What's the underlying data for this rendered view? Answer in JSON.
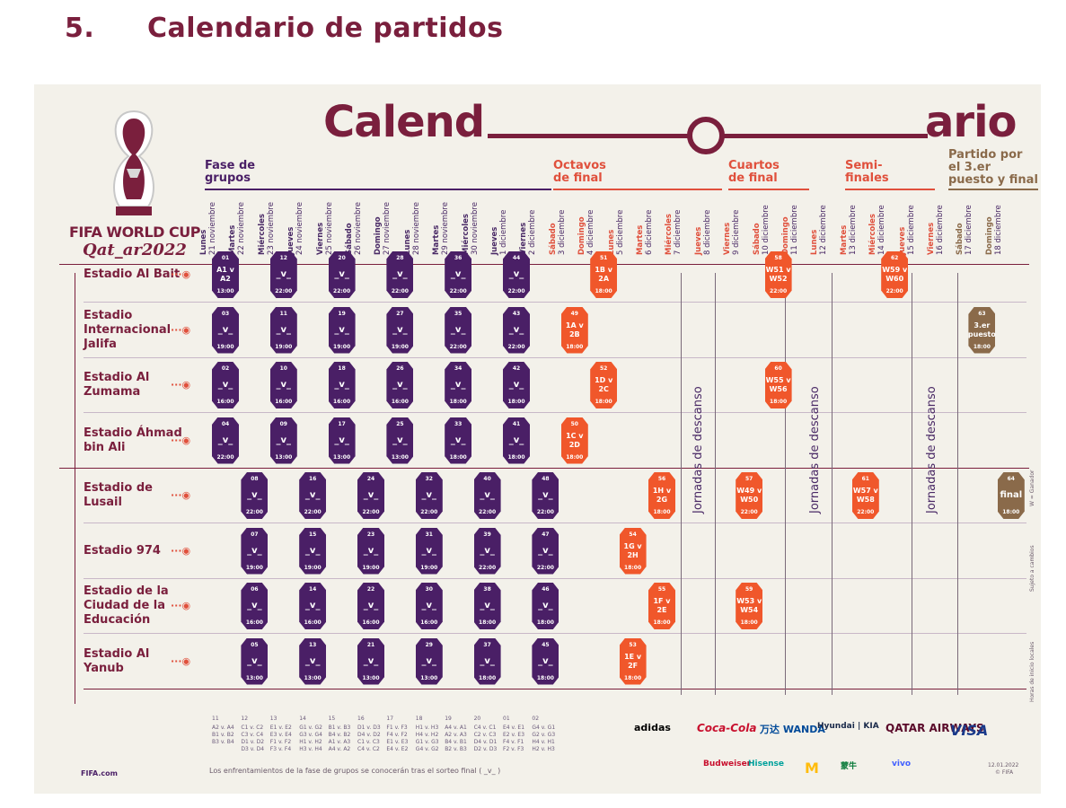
{
  "section_heading": {
    "number": "5.",
    "title": "Calendario de partidos"
  },
  "poster": {
    "title_left": "Calend",
    "title_right": "ario",
    "logo": {
      "line1": "FIFA WORLD CUP",
      "line2": "Qat_ar2022"
    },
    "phases": {
      "groups": "Fase de grupos",
      "round16": "Octavos de final",
      "quarters": "Cuartos de final",
      "semis": "Semi- finales",
      "final": "Partido por el 3.er puesto y final"
    },
    "days": [
      {
        "d": "Lunes",
        "date": "21 noviembre"
      },
      {
        "d": "Martes",
        "date": "22 noviembre"
      },
      {
        "d": "Miércoles",
        "date": "23 noviembre"
      },
      {
        "d": "Jueves",
        "date": "24 noviembre"
      },
      {
        "d": "Viernes",
        "date": "25 noviembre"
      },
      {
        "d": "Sábado",
        "date": "26 noviembre"
      },
      {
        "d": "Domingo",
        "date": "27 noviembre"
      },
      {
        "d": "Lunes",
        "date": "28 noviembre"
      },
      {
        "d": "Martes",
        "date": "29 noviembre"
      },
      {
        "d": "Miércoles",
        "date": "30 noviembre"
      },
      {
        "d": "Jueves",
        "date": "1 diciembre"
      },
      {
        "d": "Viernes",
        "date": "2 diciembre"
      },
      {
        "d": "Sábado",
        "date": "3 diciembre"
      },
      {
        "d": "Domingo",
        "date": "4 diciembre"
      },
      {
        "d": "Lunes",
        "date": "5 diciembre"
      },
      {
        "d": "Martes",
        "date": "6 diciembre"
      },
      {
        "d": "Miércoles",
        "date": "7 diciembre"
      },
      {
        "d": "Jueves",
        "date": "8 diciembre"
      },
      {
        "d": "Viernes",
        "date": "9 diciembre"
      },
      {
        "d": "Sábado",
        "date": "10 diciembre"
      },
      {
        "d": "Domingo",
        "date": "11 diciembre"
      },
      {
        "d": "Lunes",
        "date": "12 diciembre"
      },
      {
        "d": "Martes",
        "date": "13 diciembre"
      },
      {
        "d": "Miércoles",
        "date": "14 diciembre"
      },
      {
        "d": "Jueves",
        "date": "15 diciembre"
      },
      {
        "d": "Viernes",
        "date": "16 diciembre"
      },
      {
        "d": "Sábado",
        "date": "17 diciembre"
      },
      {
        "d": "Domingo",
        "date": "18 diciembre"
      }
    ],
    "stadiums": [
      "Estadio Al Bait",
      "Estadio Internacional Jalifa",
      "Estadio Al Zumama",
      "Estadio Áhmad bin Ali",
      "Estadio de Lusail",
      "Estadio 974",
      "Estadio de la Ciudad de la Educación",
      "Estadio Al Yanub"
    ],
    "rest_days": "Jornadas de descanso",
    "group_matches": [
      {
        "row": 0,
        "day": 0,
        "n": "01",
        "t": "A1 v A2",
        "time": "13:00"
      },
      {
        "row": 0,
        "day": 2,
        "n": "12",
        "t": "_v_",
        "time": "22:00"
      },
      {
        "row": 0,
        "day": 4,
        "n": "20",
        "t": "_v_",
        "time": "22:00"
      },
      {
        "row": 0,
        "day": 6,
        "n": "28",
        "t": "_v_",
        "time": "22:00"
      },
      {
        "row": 0,
        "day": 8,
        "n": "36",
        "t": "_v_",
        "time": "22:00"
      },
      {
        "row": 0,
        "day": 10,
        "n": "44",
        "t": "_v_",
        "time": "22:00"
      },
      {
        "row": 1,
        "day": 0,
        "n": "03",
        "t": "_v_",
        "time": "19:00"
      },
      {
        "row": 1,
        "day": 2,
        "n": "11",
        "t": "_v_",
        "time": "19:00"
      },
      {
        "row": 1,
        "day": 4,
        "n": "19",
        "t": "_v_",
        "time": "19:00"
      },
      {
        "row": 1,
        "day": 6,
        "n": "27",
        "t": "_v_",
        "time": "19:00"
      },
      {
        "row": 1,
        "day": 8,
        "n": "35",
        "t": "_v_",
        "time": "22:00"
      },
      {
        "row": 1,
        "day": 10,
        "n": "43",
        "t": "_v_",
        "time": "22:00"
      },
      {
        "row": 2,
        "day": 0,
        "n": "02",
        "t": "_v_",
        "time": "16:00"
      },
      {
        "row": 2,
        "day": 2,
        "n": "10",
        "t": "_v_",
        "time": "16:00"
      },
      {
        "row": 2,
        "day": 4,
        "n": "18",
        "t": "_v_",
        "time": "16:00"
      },
      {
        "row": 2,
        "day": 6,
        "n": "26",
        "t": "_v_",
        "time": "16:00"
      },
      {
        "row": 2,
        "day": 8,
        "n": "34",
        "t": "_v_",
        "time": "18:00"
      },
      {
        "row": 2,
        "day": 10,
        "n": "42",
        "t": "_v_",
        "time": "18:00"
      },
      {
        "row": 3,
        "day": 0,
        "n": "04",
        "t": "_v_",
        "time": "22:00"
      },
      {
        "row": 3,
        "day": 2,
        "n": "09",
        "t": "_v_",
        "time": "13:00"
      },
      {
        "row": 3,
        "day": 4,
        "n": "17",
        "t": "_v_",
        "time": "13:00"
      },
      {
        "row": 3,
        "day": 6,
        "n": "25",
        "t": "_v_",
        "time": "13:00"
      },
      {
        "row": 3,
        "day": 8,
        "n": "33",
        "t": "_v_",
        "time": "18:00"
      },
      {
        "row": 3,
        "day": 10,
        "n": "41",
        "t": "_v_",
        "time": "18:00"
      },
      {
        "row": 4,
        "day": 1,
        "n": "08",
        "t": "_v_",
        "time": "22:00"
      },
      {
        "row": 4,
        "day": 3,
        "n": "16",
        "t": "_v_",
        "time": "22:00"
      },
      {
        "row": 4,
        "day": 5,
        "n": "24",
        "t": "_v_",
        "time": "22:00"
      },
      {
        "row": 4,
        "day": 7,
        "n": "32",
        "t": "_v_",
        "time": "22:00"
      },
      {
        "row": 4,
        "day": 9,
        "n": "40",
        "t": "_v_",
        "time": "22:00"
      },
      {
        "row": 4,
        "day": 11,
        "n": "48",
        "t": "_v_",
        "time": "22:00"
      },
      {
        "row": 5,
        "day": 1,
        "n": "07",
        "t": "_v_",
        "time": "19:00"
      },
      {
        "row": 5,
        "day": 3,
        "n": "15",
        "t": "_v_",
        "time": "19:00"
      },
      {
        "row": 5,
        "day": 5,
        "n": "23",
        "t": "_v_",
        "time": "19:00"
      },
      {
        "row": 5,
        "day": 7,
        "n": "31",
        "t": "_v_",
        "time": "19:00"
      },
      {
        "row": 5,
        "day": 9,
        "n": "39",
        "t": "_v_",
        "time": "22:00"
      },
      {
        "row": 5,
        "day": 11,
        "n": "47",
        "t": "_v_",
        "time": "22:00"
      },
      {
        "row": 6,
        "day": 1,
        "n": "06",
        "t": "_v_",
        "time": "16:00"
      },
      {
        "row": 6,
        "day": 3,
        "n": "14",
        "t": "_v_",
        "time": "16:00"
      },
      {
        "row": 6,
        "day": 5,
        "n": "22",
        "t": "_v_",
        "time": "16:00"
      },
      {
        "row": 6,
        "day": 7,
        "n": "30",
        "t": "_v_",
        "time": "16:00"
      },
      {
        "row": 6,
        "day": 9,
        "n": "38",
        "t": "_v_",
        "time": "18:00"
      },
      {
        "row": 6,
        "day": 11,
        "n": "46",
        "t": "_v_",
        "time": "18:00"
      },
      {
        "row": 7,
        "day": 1,
        "n": "05",
        "t": "_v_",
        "time": "13:00"
      },
      {
        "row": 7,
        "day": 3,
        "n": "13",
        "t": "_v_",
        "time": "13:00"
      },
      {
        "row": 7,
        "day": 5,
        "n": "21",
        "t": "_v_",
        "time": "13:00"
      },
      {
        "row": 7,
        "day": 7,
        "n": "29",
        "t": "_v_",
        "time": "13:00"
      },
      {
        "row": 7,
        "day": 9,
        "n": "37",
        "t": "_v_",
        "time": "18:00"
      },
      {
        "row": 7,
        "day": 11,
        "n": "45",
        "t": "_v_",
        "time": "18:00"
      }
    ],
    "ko_matches": [
      {
        "row": 0,
        "day": 13,
        "n": "51",
        "t": "1B v 2A",
        "time": "18:00",
        "c": "o"
      },
      {
        "row": 1,
        "day": 12,
        "n": "49",
        "t": "1A v 2B",
        "time": "18:00",
        "c": "o"
      },
      {
        "row": 2,
        "day": 13,
        "n": "52",
        "t": "1D v 2C",
        "time": "18:00",
        "c": "o"
      },
      {
        "row": 3,
        "day": 12,
        "n": "50",
        "t": "1C v 2D",
        "time": "18:00",
        "c": "o"
      },
      {
        "row": 4,
        "day": 15,
        "n": "56",
        "t": "1H v 2G",
        "time": "18:00",
        "c": "o"
      },
      {
        "row": 5,
        "day": 14,
        "n": "54",
        "t": "1G v 2H",
        "time": "18:00",
        "c": "o"
      },
      {
        "row": 6,
        "day": 15,
        "n": "55",
        "t": "1F v 2E",
        "time": "18:00",
        "c": "o"
      },
      {
        "row": 7,
        "day": 14,
        "n": "53",
        "t": "1E v 2F",
        "time": "18:00",
        "c": "o"
      },
      {
        "row": 0,
        "day": 19,
        "n": "58",
        "t": "W51 v W52",
        "time": "22:00",
        "c": "o"
      },
      {
        "row": 2,
        "day": 19,
        "n": "60",
        "t": "W55 v W56",
        "time": "18:00",
        "c": "o"
      },
      {
        "row": 4,
        "day": 18,
        "n": "57",
        "t": "W49 v W50",
        "time": "22:00",
        "c": "o"
      },
      {
        "row": 6,
        "day": 18,
        "n": "59",
        "t": "W53 v W54",
        "time": "18:00",
        "c": "o"
      },
      {
        "row": 0,
        "day": 23,
        "n": "62",
        "t": "W59 v W60",
        "time": "22:00",
        "c": "o"
      },
      {
        "row": 4,
        "day": 22,
        "n": "61",
        "t": "W57 v W58",
        "time": "22:00",
        "c": "o"
      },
      {
        "row": 1,
        "day": 26,
        "n": "63",
        "t": "3.er puesto",
        "time": "18:00",
        "c": "b"
      },
      {
        "row": 4,
        "day": 27,
        "n": "64",
        "t": "final",
        "time": "18:00",
        "c": "b"
      }
    ],
    "group_codes": [
      {
        "label": "11",
        "lines": [
          "A2 v. A4",
          "B1 v. B2",
          "B3 v. B4"
        ]
      },
      {
        "label": "12",
        "lines": [
          "C1 v. C2",
          "C3 v. C4",
          "D1 v. D2",
          "D3 v. D4"
        ]
      },
      {
        "label": "13",
        "lines": [
          "E1 v. E2",
          "E3 v. E4",
          "F1 v. F2",
          "F3 v. F4"
        ]
      },
      {
        "label": "14",
        "lines": [
          "G1 v. G2",
          "G3 v. G4",
          "H1 v. H2",
          "H3 v. H4"
        ]
      },
      {
        "label": "15",
        "lines": [
          "B1 v. B3",
          "B4 v. B2",
          "A1 v. A3",
          "A4 v. A2"
        ]
      },
      {
        "label": "16",
        "lines": [
          "D1 v. D3",
          "D4 v. D2",
          "C1 v. C3",
          "C4 v. C2"
        ]
      },
      {
        "label": "17",
        "lines": [
          "F1 v. F3",
          "F4 v. F2",
          "E1 v. E3",
          "E4 v. E2"
        ]
      },
      {
        "label": "18",
        "lines": [
          "H1 v. H3",
          "H4 v. H2",
          "G1 v. G3",
          "G4 v. G2"
        ]
      },
      {
        "label": "19",
        "lines": [
          "A4 v. A1",
          "A2 v. A3",
          "B4 v. B1",
          "B2 v. B3"
        ]
      },
      {
        "label": "20",
        "lines": [
          "C4 v. C1",
          "C2 v. C3",
          "D4 v. D1",
          "D2 v. D3"
        ]
      },
      {
        "label": "01",
        "lines": [
          "E4 v. E1",
          "E2 v. E3",
          "F4 v. F1",
          "F2 v. F3"
        ]
      },
      {
        "label": "02",
        "lines": [
          "G4 v. G1",
          "G2 v. G3",
          "H4 v. H1",
          "H2 v. H3"
        ]
      }
    ],
    "bottom_note": "Los enfrentamientos de la fase de grupos se conocerán tras el sorteo final ( _v_ )",
    "footer_left": "FIFA.com",
    "sponsors_row1": [
      "adidas",
      "Coca-Cola",
      "万达 WANDA",
      "Hyundai | KIA",
      "QATAR AIRWAYS",
      "VISA"
    ],
    "sponsors_row2": [
      "Budweiser",
      "Hisense",
      "M",
      "蒙牛",
      "vivo"
    ],
    "date_stamp": "12.01.2022",
    "copyright": "© FIFA",
    "side_notes": [
      "W = Ganador",
      "Sujeto a cambios",
      "Horas de inicio locales"
    ],
    "colors": {
      "maroon": "#7a1f3d",
      "purple": "#4a1f66",
      "orange": "#f0572b",
      "brown": "#8a6a4a",
      "cream": "#f3f1ea"
    }
  }
}
